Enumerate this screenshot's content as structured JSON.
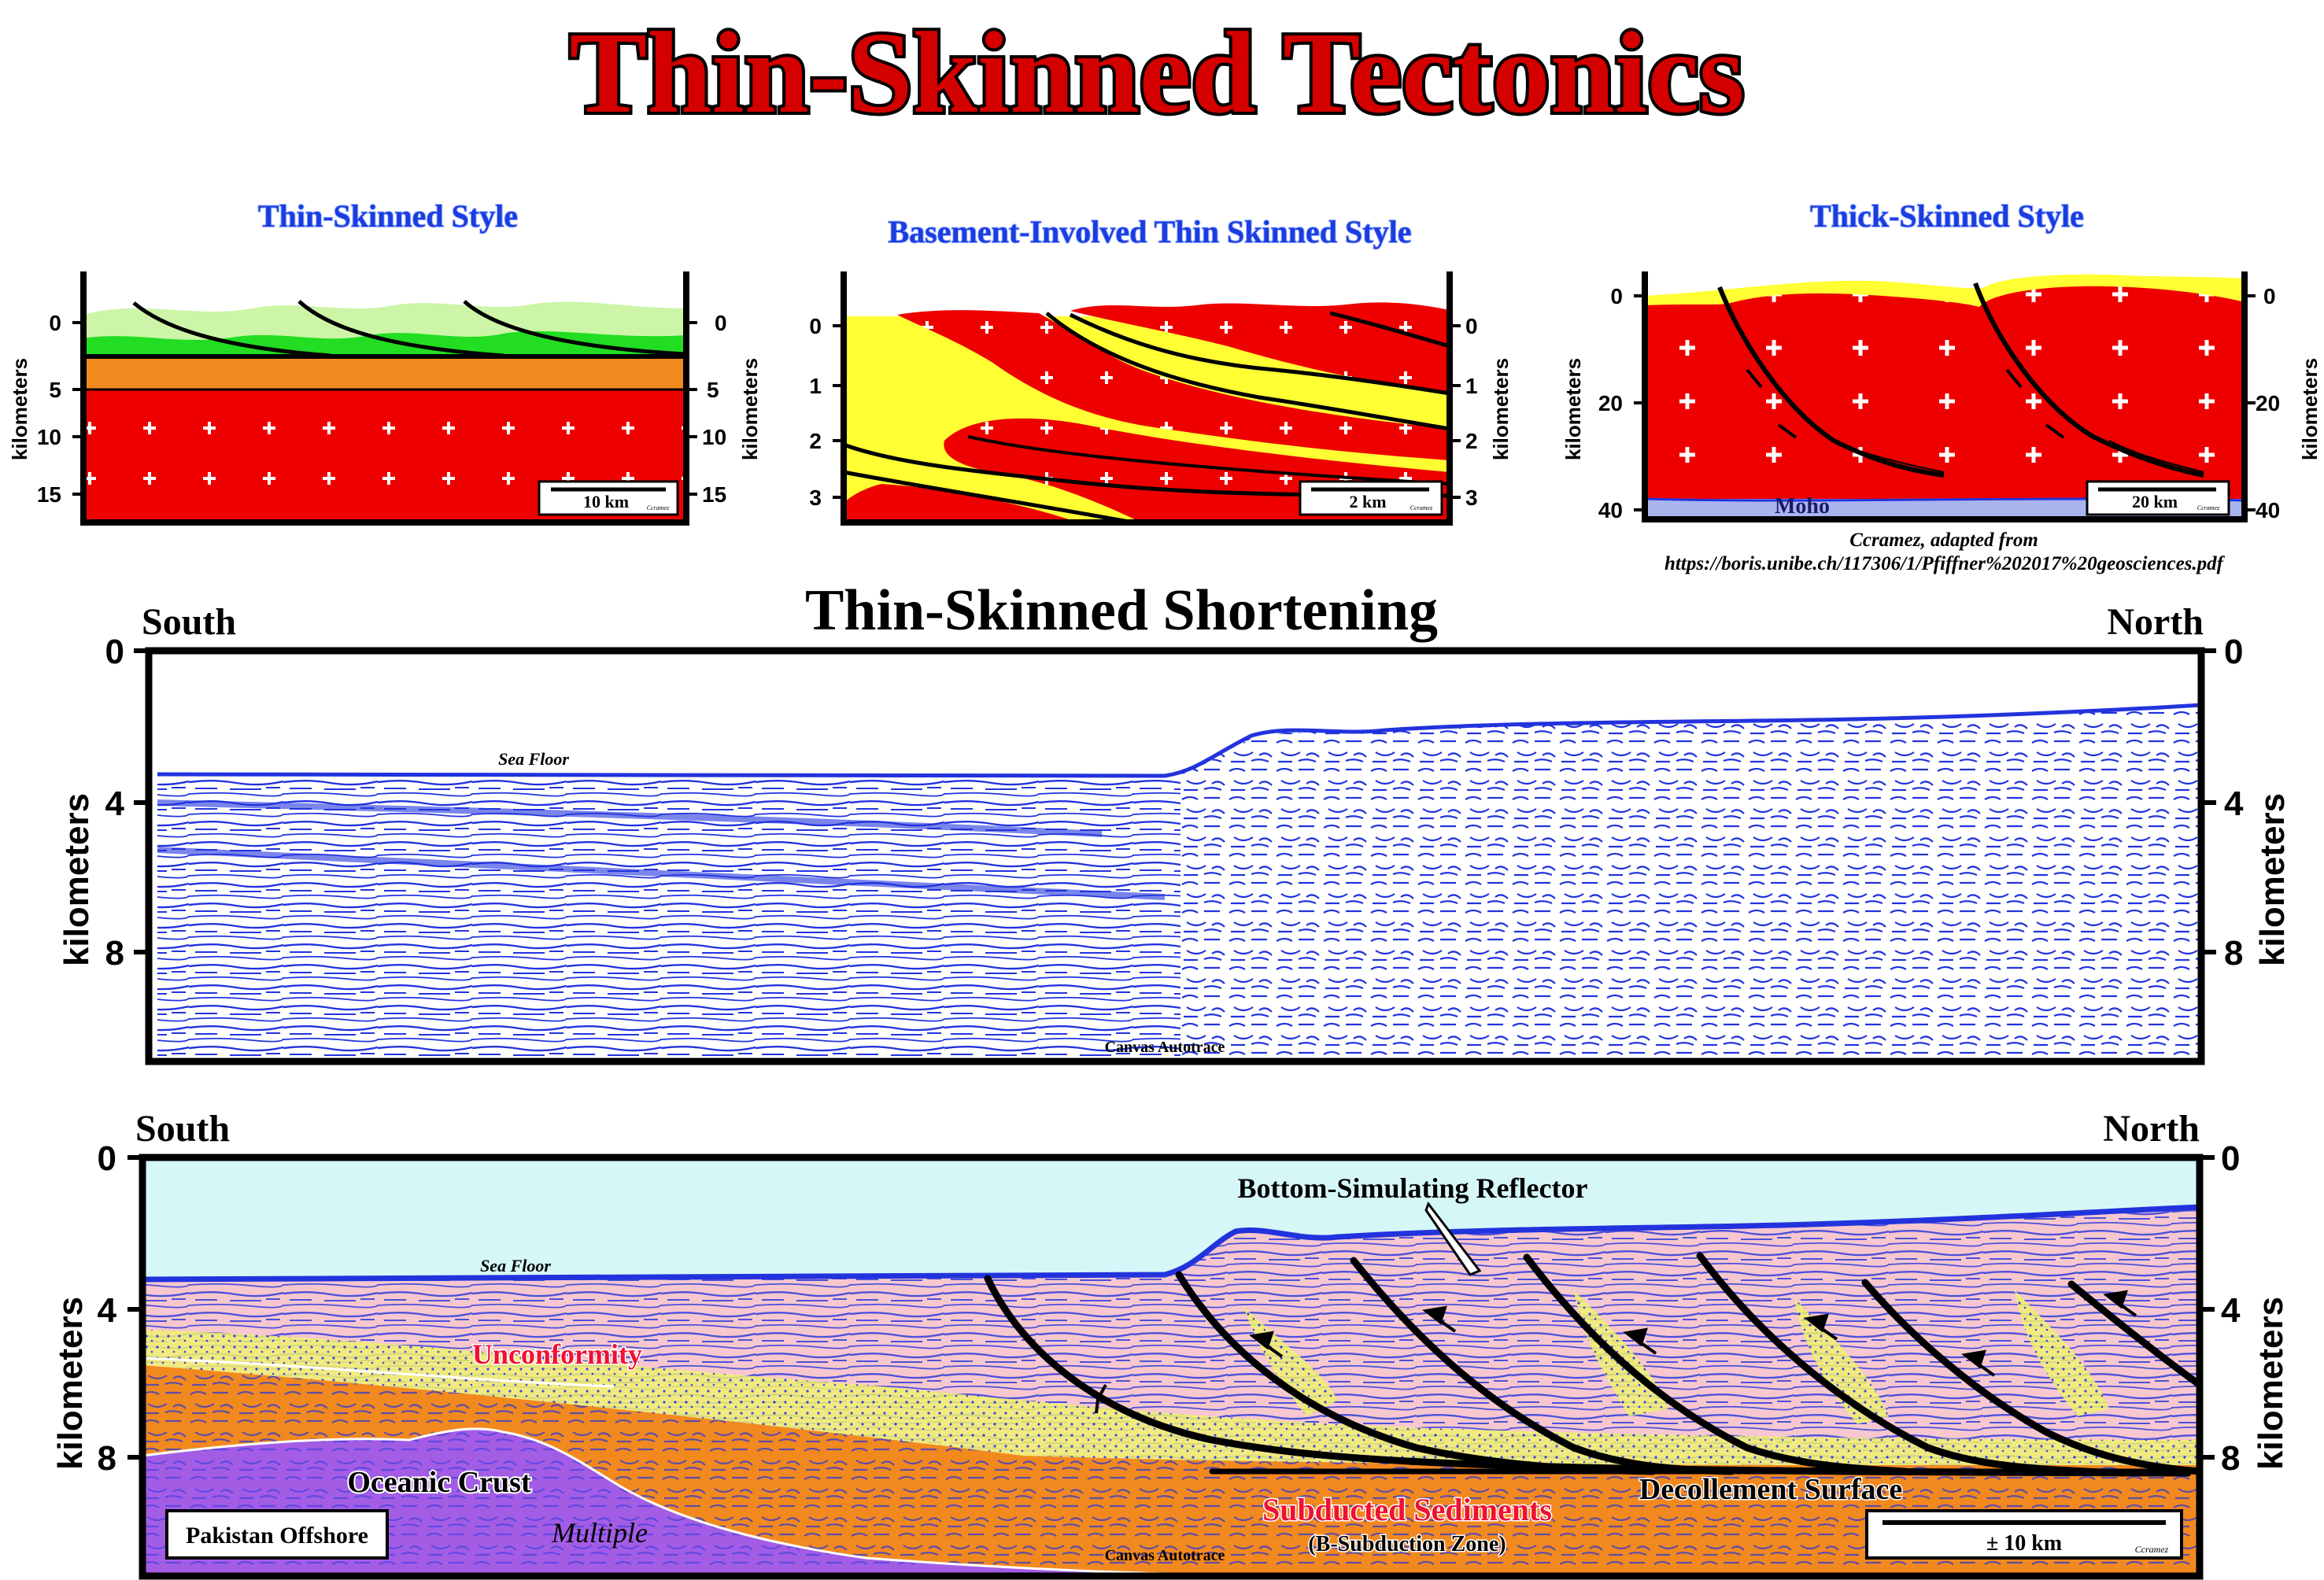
{
  "page": {
    "title": "Thin-Skinned Tectonics",
    "colors": {
      "title_fill": "#d40000",
      "subtitle_blue": "#1a3de0",
      "crust_red": "#ee0000",
      "sediment_yellow": "#ffff33",
      "sediment_orange": "#f2891f",
      "green_light": "#ccf5a8",
      "green_dark": "#22dd22",
      "seismic_blue": "#2233dd",
      "sky_cyan": "#d6f7f8",
      "pink": "#f6c7cf",
      "purple": "#a35de5",
      "moho_lavender": "#a9b4ee",
      "unconformity_red": "#ee1133"
    }
  },
  "panel_thin": {
    "title": "Thin-Skinned Style",
    "axis_label": "kilometers",
    "ticks": [
      "0",
      "5",
      "10",
      "15"
    ],
    "scale_label": "10 km",
    "credit": "Ccramez"
  },
  "panel_basement": {
    "title": "Basement-Involved Thin Skinned Style",
    "axis_label": "kilometers",
    "ticks": [
      "0",
      "1",
      "2",
      "3"
    ],
    "scale_label": "2 km",
    "credit": "Ccramez"
  },
  "panel_thick": {
    "title": "Thick-Skinned Style",
    "axis_label": "kilometers",
    "ticks": [
      "0",
      "20",
      "40"
    ],
    "moho_label": "Moho",
    "scale_label": "20 km",
    "credit": "Ccramez",
    "credit_line1": "Ccramez, adapted from",
    "credit_line2": "https://boris.unibe.ch/117306/1/Pfiffner%202017%20geosciences.pdf"
  },
  "seismic": {
    "title": "Thin-Skinned Shortening",
    "left_label": "South",
    "right_label": "North",
    "axis_label": "kilometers",
    "ticks": [
      "0",
      "4",
      "8"
    ],
    "sea_floor_label": "Sea Floor",
    "watermark": "Canvas Autotrace"
  },
  "interpretation": {
    "left_label": "South",
    "right_label": "North",
    "axis_label": "kilometers",
    "ticks": [
      "0",
      "4",
      "8"
    ],
    "sea_floor_label": "Sea Floor",
    "bsr_label": "Bottom-Simulating Reflector",
    "unconformity_label": "Unconformity",
    "oceanic_crust_label": "Oceanic Crust",
    "multiple_label": "Multiple",
    "subducted_label": "Subducted Sediments",
    "subduction_zone_label": "(B-Subduction Zone)",
    "decollement_label": "Decollement Surface",
    "location_label": "Pakistan Offshore",
    "scale_label": "± 10 km",
    "credit": "Ccramez",
    "watermark": "Canvas Autotrace"
  }
}
